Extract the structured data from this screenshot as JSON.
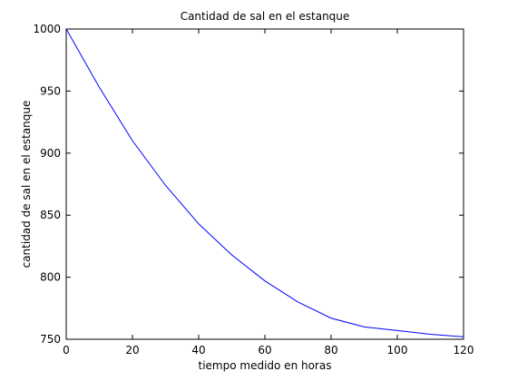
{
  "chart_data": {
    "type": "line",
    "title": "Cantidad de sal en el estanque",
    "xlabel": "tiempo medido en horas",
    "ylabel": "cantidad de sal en el estanque",
    "xlim": [
      0,
      120
    ],
    "ylim": [
      750,
      1000
    ],
    "xticks": [
      0,
      20,
      40,
      60,
      80,
      100,
      120
    ],
    "yticks": [
      750,
      800,
      850,
      900,
      950,
      1000
    ],
    "grid": false,
    "legend": "none",
    "series": [
      {
        "color": "#0000ff",
        "x": [
          0,
          10,
          20,
          30,
          40,
          50,
          60,
          70,
          80,
          90,
          100,
          110,
          120
        ],
        "y": [
          1000,
          953,
          910,
          874,
          843,
          818,
          797,
          780,
          767,
          760,
          757,
          754,
          752
        ]
      }
    ]
  }
}
